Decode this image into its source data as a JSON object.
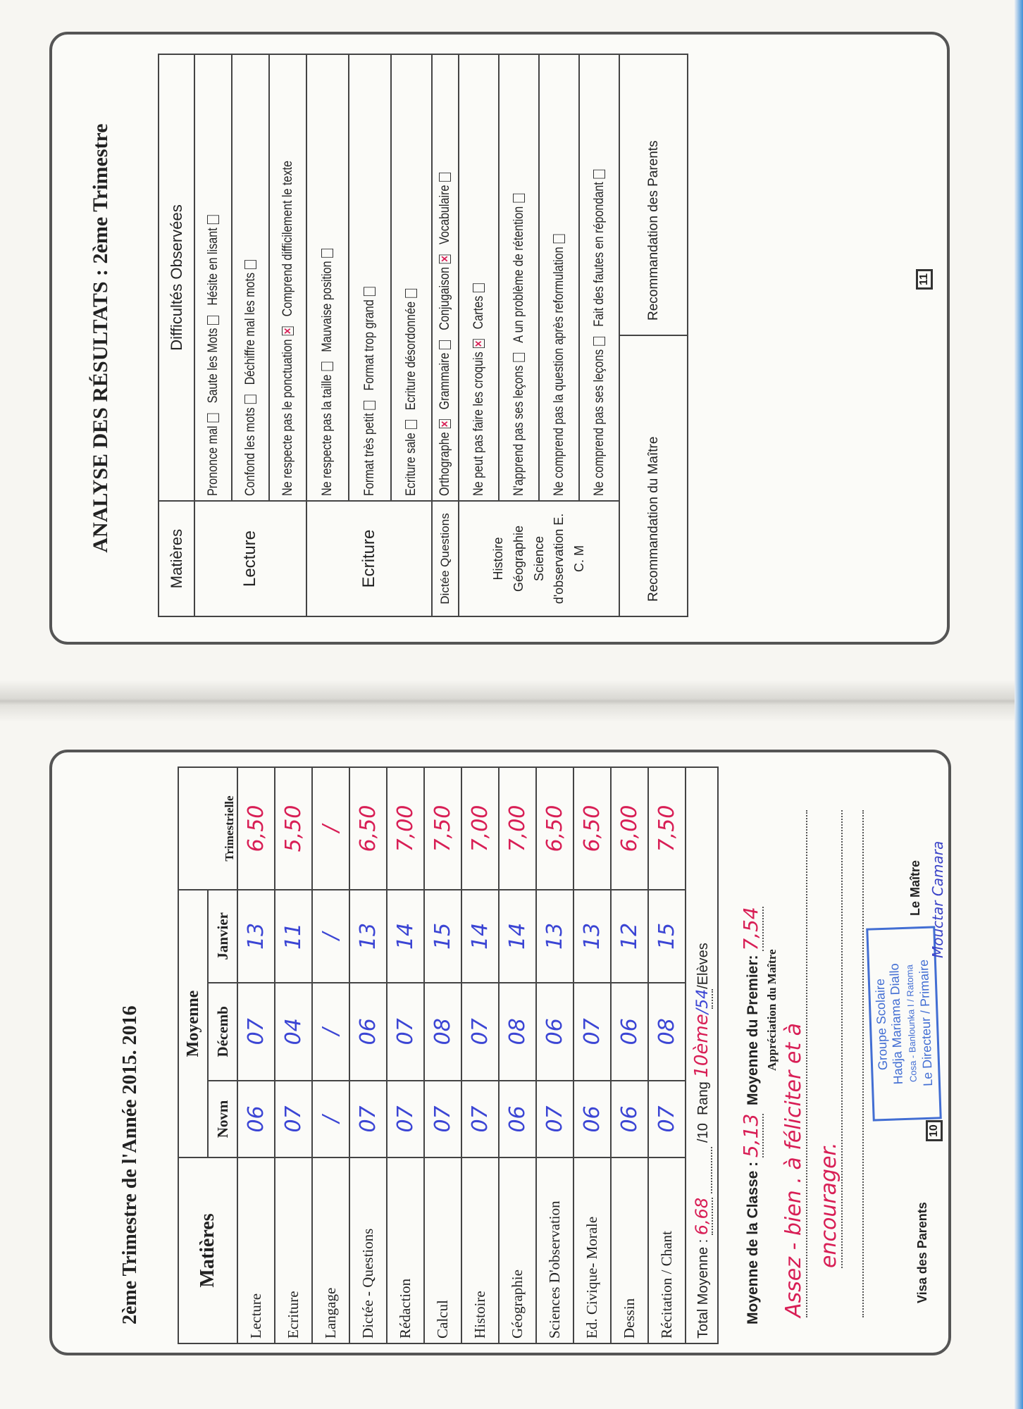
{
  "page11": {
    "title": "ANALYSE DES RÉSULTATS : 2ème Trimestre",
    "page_number": "11",
    "headers": {
      "subject": "Matières",
      "difficulties": "Difficultés Observées"
    },
    "sections": [
      {
        "subject": "Lecture",
        "lines": [
          [
            {
              "label": "Prononce mal",
              "checked": false
            },
            {
              "label": "Saute les Mots",
              "checked": false
            },
            {
              "label": "Hésite en lisant",
              "checked": false
            }
          ],
          [
            {
              "label": "Confond les mots",
              "checked": false
            },
            {
              "label": "Déchiffre mal les mots",
              "checked": false
            }
          ],
          [
            {
              "label": "Ne respecte pas le ponctuation",
              "checked": true
            },
            {
              "label": "Comprend difficilement le texte",
              "checked": null
            }
          ]
        ]
      },
      {
        "subject": "Ecriture",
        "lines": [
          [
            {
              "label": "Ne respecte pas la taille",
              "checked": false
            },
            {
              "label": "Mauvaise position",
              "checked": false
            }
          ],
          [
            {
              "label": "Format très petit",
              "checked": false
            },
            {
              "label": "Format trop grand",
              "checked": false
            }
          ],
          [
            {
              "label": "Ecriture sale",
              "checked": false
            },
            {
              "label": "Ecriture désordonnée",
              "checked": false
            }
          ]
        ]
      },
      {
        "subject": "Dictée Questions",
        "lines": [
          [
            {
              "label": "Orthographe",
              "checked": true
            },
            {
              "label": "Grammaire",
              "checked": false
            },
            {
              "label": "Conjugaison",
              "checked": true
            },
            {
              "label": "Vocabulaire",
              "checked": false
            }
          ]
        ]
      },
      {
        "subject": "Histoire Géographie Science d'observation E. C. M",
        "lines": [
          [
            {
              "label": "Ne peut pas faire les croquis",
              "checked": true
            },
            {
              "label": "Cartes",
              "checked": false
            }
          ],
          [
            {
              "label": "N'apprend pas ses leçons",
              "checked": false
            },
            {
              "label": "A un problème de rétention",
              "checked": false
            }
          ],
          [
            {
              "label": "Ne comprend pas la question après reformulation",
              "checked": false
            }
          ],
          [
            {
              "label": "Ne comprend pas ses leçons",
              "checked": false
            },
            {
              "label": "Fait des fautes en répondant",
              "checked": false
            }
          ]
        ]
      }
    ],
    "rec_teacher": "Recommandation du Maître",
    "rec_parents": "Recommandation des Parents"
  },
  "page10": {
    "title_prefix": "2ème Trimestre de l'Année 2015. 2016",
    "page_number": "10",
    "headers": {
      "subject": "Matières",
      "moyenne": "Moyenne",
      "novm": "Novm",
      "decemb": "Décemb",
      "janvier": "Janvier",
      "trim": "Trimestrielle"
    },
    "rows": [
      {
        "subject": "Lecture",
        "novm": "06",
        "decemb": "07",
        "janvier": "13",
        "trim": "6,50"
      },
      {
        "subject": "Ecriture",
        "novm": "07",
        "decemb": "04",
        "janvier": "11",
        "trim": "5,50"
      },
      {
        "subject": "Langage",
        "novm": "/",
        "decemb": "/",
        "janvier": "/",
        "trim": "/"
      },
      {
        "subject": "Dictée - Questions",
        "novm": "07",
        "decemb": "06",
        "janvier": "13",
        "trim": "6,50"
      },
      {
        "subject": "Rédaction",
        "novm": "07",
        "decemb": "07",
        "janvier": "14",
        "trim": "7,00"
      },
      {
        "subject": "Calcul",
        "novm": "07",
        "decemb": "08",
        "janvier": "15",
        "trim": "7,50"
      },
      {
        "subject": "Histoire",
        "novm": "07",
        "decemb": "07",
        "janvier": "14",
        "trim": "7,00"
      },
      {
        "subject": "Géographie",
        "novm": "06",
        "decemb": "08",
        "janvier": "14",
        "trim": "7,00"
      },
      {
        "subject": "Sciences D'observation",
        "novm": "07",
        "decemb": "06",
        "janvier": "13",
        "trim": "6,50"
      },
      {
        "subject": "Ed. Civique- Morale",
        "novm": "06",
        "decemb": "07",
        "janvier": "13",
        "trim": "6,50"
      },
      {
        "subject": "Dessin",
        "novm": "06",
        "decemb": "06",
        "janvier": "12",
        "trim": "6,00"
      },
      {
        "subject": "Récitation / Chant",
        "novm": "07",
        "decemb": "08",
        "janvier": "15",
        "trim": "7,50"
      }
    ],
    "total": {
      "label": "Total Moyenne :",
      "value": "6,68",
      "out_of": "/10",
      "rang_label": "Rang",
      "rang": "10ème",
      "eleves": "54",
      "eleves_label": "/Elèves"
    },
    "class_avg": {
      "label": "Moyenne de la Classe :",
      "value": "5,13"
    },
    "first_avg": {
      "label": "Moyenne du Premier:",
      "value": "7,54"
    },
    "appreciation_label": "Appréciation du Maître",
    "appreciation": [
      "Assez - bien . à féliciter et à",
      "encourager."
    ],
    "visa_parents": "Visa des Parents",
    "le_maitre": "Le Maître",
    "teacher_signature_name": "Mouctar Camara",
    "stamp": [
      "Groupe Scolaire",
      "Hadja Mariama Diallo",
      "Cosa - Banlounka I / Ratoma",
      "Le Directeur / Primaire"
    ]
  },
  "colors": {
    "ink_blue": "#3b45d4",
    "ink_red": "#d81e55",
    "stamp_blue": "#2f5fd0"
  }
}
